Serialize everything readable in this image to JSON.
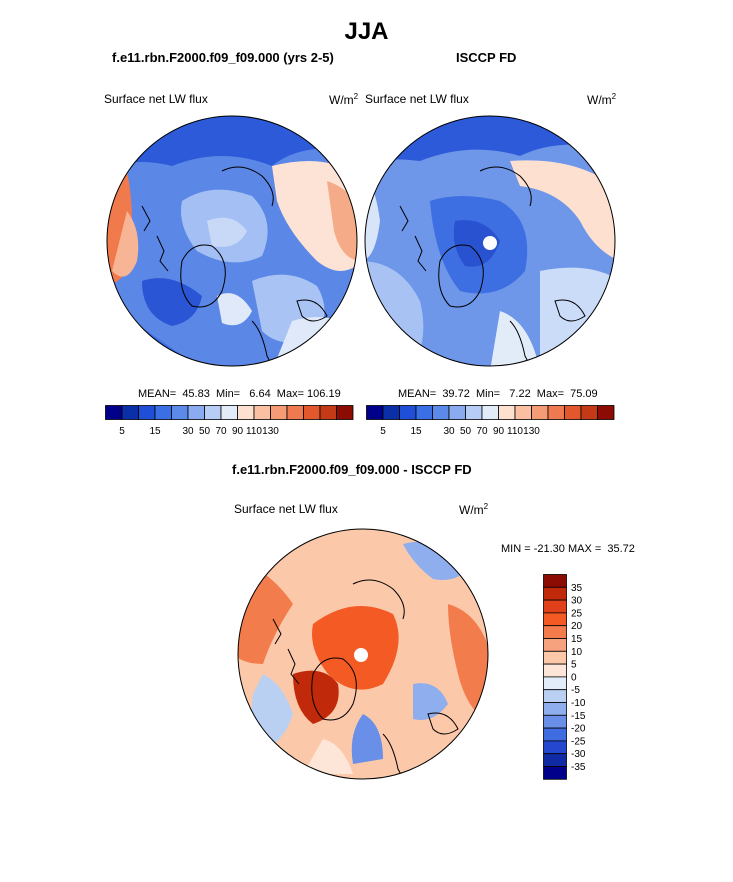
{
  "figure": {
    "title": "JJA",
    "panels": [
      {
        "id": "model",
        "title": "f.e11.rbn.F2000.f09_f09.000 (yrs 2-5)",
        "variable": "Surface net LW flux",
        "units": "W/m",
        "units_sup": "2",
        "stats": "MEAN=  45.83  Min=   6.64  Max= 106.19"
      },
      {
        "id": "obs",
        "title": "ISCCP FD",
        "variable": "Surface net LW flux",
        "units": "W/m",
        "units_sup": "2",
        "stats": "MEAN=  39.72  Min=   7.22  Max=  75.09"
      },
      {
        "id": "diff",
        "title": "f.e11.rbn.F2000.f09_f09.000 - ISCCP FD",
        "variable": "Surface net LW flux",
        "units": "W/m",
        "units_sup": "2",
        "stats": "MIN = -21.30 MAX =  35.72"
      }
    ],
    "colorbar_abs": {
      "colors": [
        "#00008b",
        "#0a2fa6",
        "#1f4fd6",
        "#3b6fe6",
        "#5c8ae8",
        "#8aabf0",
        "#b7cdf5",
        "#e2ecf9",
        "#fde0d0",
        "#fbbfa2",
        "#f59c76",
        "#ef7a4f",
        "#e3572c",
        "#c43a16",
        "#8c0c03"
      ],
      "tick_labels": [
        "5",
        "15",
        "30",
        "50",
        "70",
        "90",
        "110",
        "130"
      ]
    },
    "colorbar_diff": {
      "colors": [
        "#8c0c03",
        "#c02a0a",
        "#e0401a",
        "#f45a24",
        "#f37c4c",
        "#f6a27e",
        "#fbc8aa",
        "#fde6d8",
        "#e3edf9",
        "#bad0f3",
        "#8eaeee",
        "#6a8fe8",
        "#3f6ce0",
        "#2547d0",
        "#102aa4",
        "#00008b"
      ],
      "tick_labels": [
        "35",
        "30",
        "25",
        "20",
        "15",
        "10",
        "5",
        "0",
        "-5",
        "-10",
        "-15",
        "-20",
        "-25",
        "-30",
        "-35"
      ]
    }
  }
}
